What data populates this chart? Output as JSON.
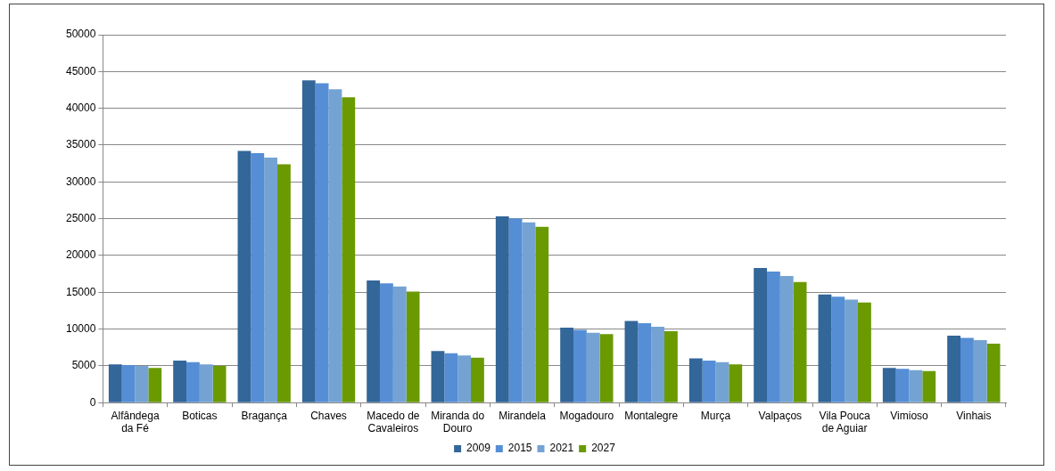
{
  "chart_data": {
    "type": "bar",
    "categories": [
      "Alfândega da Fé",
      "Boticas",
      "Bragança",
      "Chaves",
      "Macedo de Cavaleiros",
      "Miranda do Douro",
      "Mirandela",
      "Mogadouro",
      "Montalegre",
      "Murça",
      "Valpaços",
      "Vila Pouca de Aguiar",
      "Vimioso",
      "Vinhais"
    ],
    "series": [
      {
        "name": "2009",
        "color": "#336699",
        "values": [
          5200,
          5700,
          34200,
          43800,
          16600,
          7000,
          25300,
          10200,
          11100,
          6000,
          18300,
          14700,
          4700,
          9100
        ]
      },
      {
        "name": "2015",
        "color": "#558ed5",
        "values": [
          5100,
          5500,
          33900,
          43400,
          16200,
          6700,
          25000,
          9900,
          10800,
          5700,
          17800,
          14400,
          4600,
          8800
        ]
      },
      {
        "name": "2021",
        "color": "#74a3d3",
        "values": [
          5000,
          5200,
          33300,
          42600,
          15800,
          6400,
          24500,
          9500,
          10300,
          5500,
          17200,
          14000,
          4400,
          8500
        ]
      },
      {
        "name": "2027",
        "color": "#6a9a00",
        "values": [
          4700,
          5000,
          32400,
          41500,
          15100,
          6100,
          23900,
          9300,
          9700,
          5200,
          16400,
          13600,
          4300,
          8000
        ]
      }
    ],
    "ylim": [
      0,
      50000
    ],
    "yticks": [
      0,
      5000,
      10000,
      15000,
      20000,
      25000,
      30000,
      35000,
      40000,
      45000,
      50000
    ],
    "grid": "y",
    "legend": "bottom"
  }
}
